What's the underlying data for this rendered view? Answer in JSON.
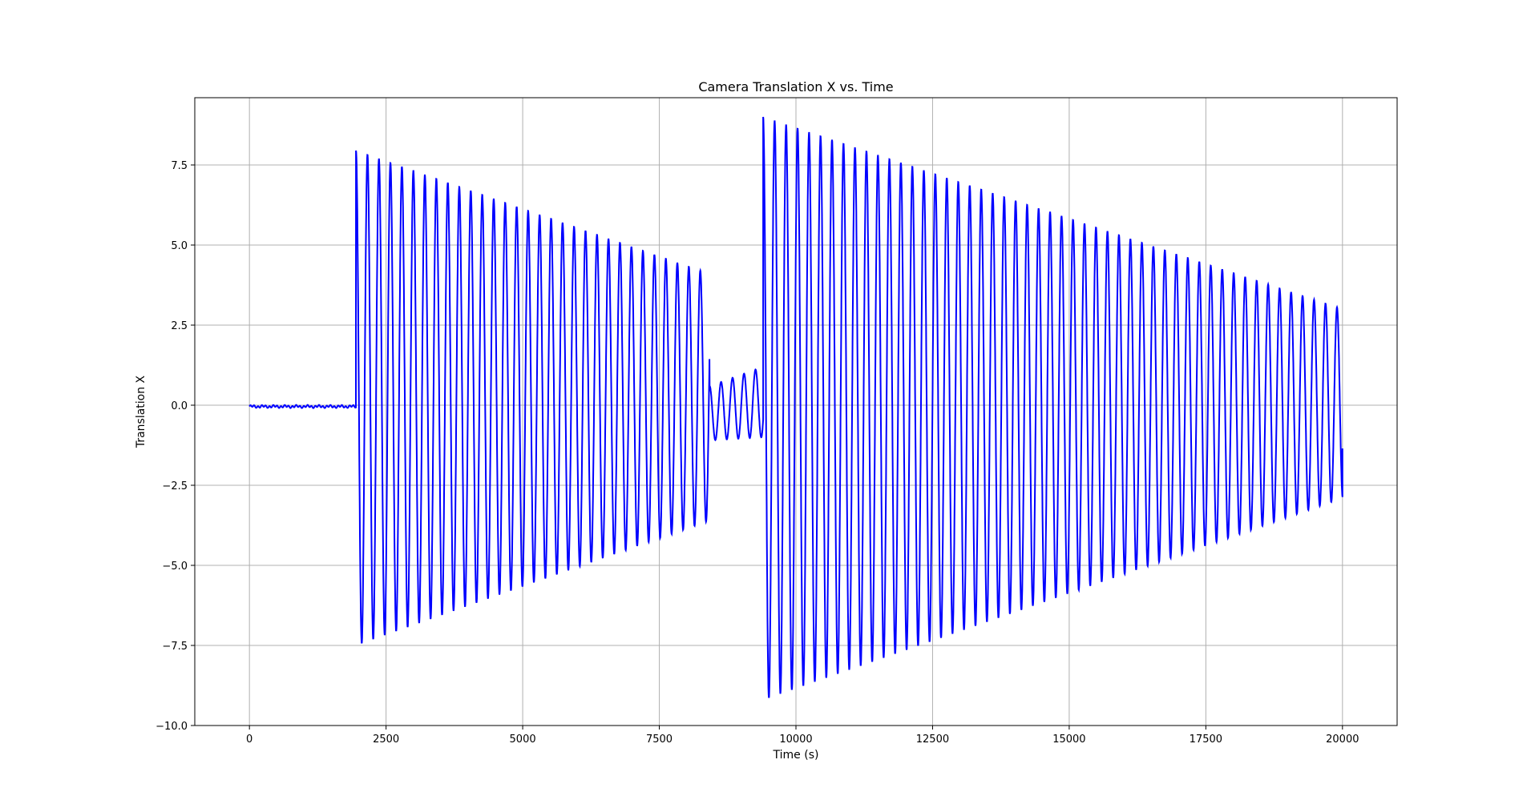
{
  "chart_data": {
    "type": "line",
    "title": "Camera Translation X vs. Time",
    "xlabel": "Time (s)",
    "ylabel": "Translation X",
    "xlim": [
      -1000,
      21000
    ],
    "ylim": [
      -10,
      9.6
    ],
    "x_ticks": [
      0,
      2500,
      5000,
      7500,
      10000,
      12500,
      15000,
      17500,
      20000
    ],
    "x_tick_labels": [
      "0",
      "2500",
      "5000",
      "7500",
      "10000",
      "12500",
      "15000",
      "17500",
      "20000"
    ],
    "y_ticks": [
      -10,
      -7.5,
      -5,
      -2.5,
      0,
      2.5,
      5,
      7.5
    ],
    "y_tick_labels": [
      "−10.0",
      "−7.5",
      "−5.0",
      "−2.5",
      "0.0",
      "2.5",
      "5.0",
      "7.5"
    ],
    "grid": true,
    "legend": "none",
    "series": [
      {
        "color": "#0000ff",
        "segments": [
          {
            "kind": "noise",
            "x_start": 0,
            "x_end": 1950,
            "amplitude": 0.05
          },
          {
            "kind": "oscillation",
            "x_start": 1950,
            "x_end": 8420,
            "period": 210,
            "peak_start": 7.95,
            "peak_end": 4.1,
            "trough_start": -7.5,
            "trough_end": -3.6
          },
          {
            "kind": "oscillation",
            "x_start": 8420,
            "x_end": 9400,
            "period": 210,
            "peak_start": 0.6,
            "peak_end": 1.2,
            "trough_start": -1.1,
            "trough_end": -1.0
          },
          {
            "kind": "oscillation",
            "x_start": 9400,
            "x_end": 20000,
            "period": 210,
            "peak_start": 9.0,
            "peak_end": 3.0,
            "trough_start": -9.2,
            "trough_end": -2.9
          }
        ],
        "end_value": -1.35
      }
    ]
  }
}
